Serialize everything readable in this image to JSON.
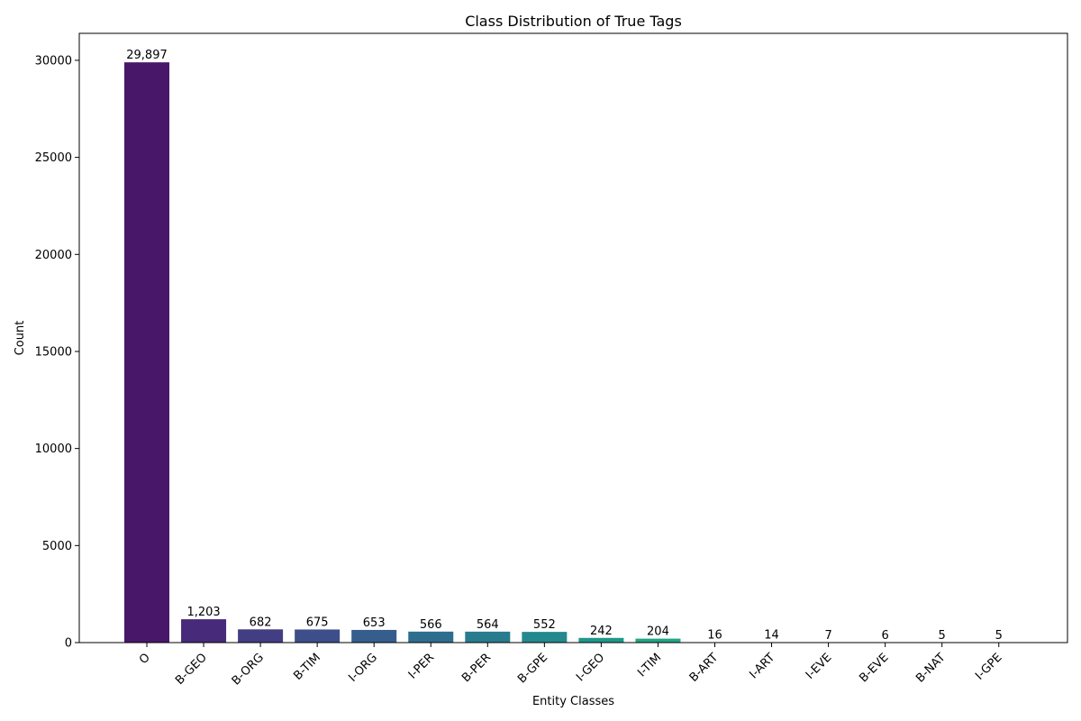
{
  "chart_data": {
    "type": "bar",
    "title": "Class Distribution of True Tags",
    "xlabel": "Entity Classes",
    "ylabel": "Count",
    "ylim": [
      0,
      31390
    ],
    "yticks": [
      0,
      5000,
      10000,
      15000,
      20000,
      25000,
      30000
    ],
    "ytick_labels": [
      "0",
      "5000",
      "10000",
      "15000",
      "20000",
      "25000",
      "30000"
    ],
    "categories": [
      "O",
      "B-GEO",
      "B-ORG",
      "B-TIM",
      "I-ORG",
      "I-PER",
      "B-PER",
      "B-GPE",
      "I-GEO",
      "I-TIM",
      "B-ART",
      "I-ART",
      "I-EVE",
      "B-EVE",
      "B-NAT",
      "I-GPE"
    ],
    "values": [
      29897,
      1203,
      682,
      675,
      653,
      566,
      564,
      552,
      242,
      204,
      16,
      14,
      7,
      6,
      5,
      5
    ],
    "value_labels": [
      "29,897",
      "1,203",
      "682",
      "675",
      "653",
      "566",
      "564",
      "552",
      "242",
      "204",
      "16",
      "14",
      "7",
      "6",
      "5",
      "5"
    ],
    "colors": [
      "#481769",
      "#472b7a",
      "#433d84",
      "#3d4e8a",
      "#355e8d",
      "#2e6d8e",
      "#297b8e",
      "#23898e",
      "#1f978b",
      "#21a585",
      "#2eb37c",
      "#46c06f",
      "#65cb5e",
      "#89d548",
      "#b0dd2f",
      "#d8e219"
    ],
    "grid": false,
    "legend": "none"
  }
}
